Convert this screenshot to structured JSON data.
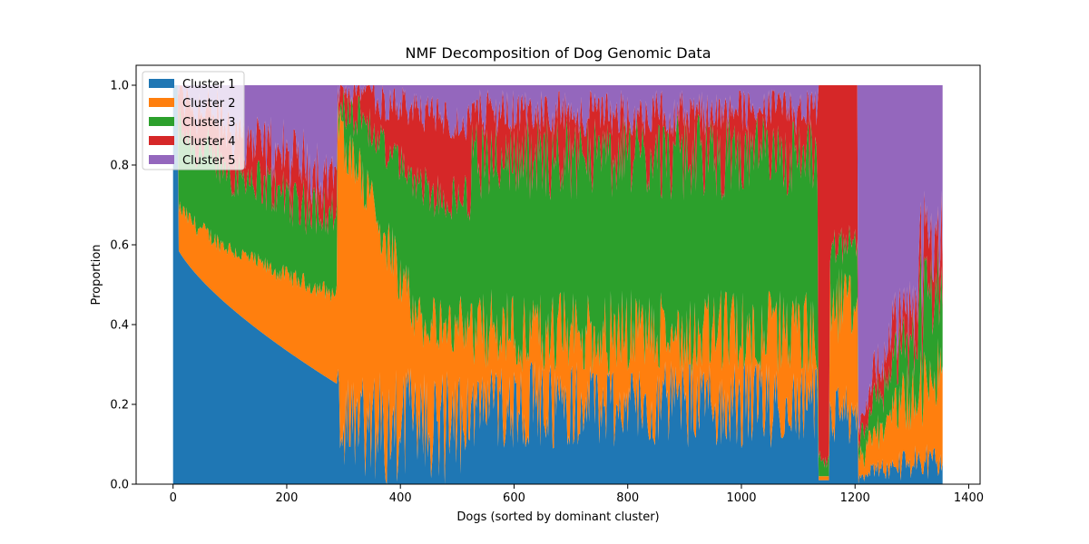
{
  "chart_data": {
    "type": "area",
    "stacked": true,
    "title": "NMF Decomposition of Dog Genomic Data",
    "xlabel": "Dogs (sorted by dominant cluster)",
    "ylabel": "Proportion",
    "xlim": [
      -65,
      1420
    ],
    "ylim": [
      0,
      1.05
    ],
    "xticks": [
      "0",
      "200",
      "400",
      "600",
      "800",
      "1000",
      "1200",
      "1400"
    ],
    "yticks": [
      "0.0",
      "0.2",
      "0.4",
      "0.6",
      "0.8",
      "1.0"
    ],
    "legend_position": "top-left",
    "grid": false,
    "n_samples": 1355,
    "series": [
      {
        "name": "Cluster 1",
        "color": "#1f77b4"
      },
      {
        "name": "Cluster 2",
        "color": "#ff7f0e"
      },
      {
        "name": "Cluster 3",
        "color": "#2ca02c"
      },
      {
        "name": "Cluster 4",
        "color": "#d62728"
      },
      {
        "name": "Cluster 5",
        "color": "#9467bd"
      }
    ],
    "segments": [
      {
        "range": [
          0,
          290
        ],
        "dominant": "Cluster 1",
        "cumulative_boundaries_start": [
          1.0,
          1.0,
          1.0,
          1.0,
          1.0
        ],
        "cumulative_boundaries_end": [
          0.25,
          0.45,
          0.72,
          0.82,
          1.0
        ]
      },
      {
        "range": [
          290,
          525
        ],
        "dominant": "Cluster 2",
        "mean_cumulative_boundaries": [
          0.15,
          0.45,
          0.72,
          0.88,
          1.0
        ]
      },
      {
        "range": [
          525,
          1135
        ],
        "dominant": "Cluster 3",
        "mean_cumulative_boundaries": [
          0.2,
          0.38,
          0.82,
          0.93,
          1.0
        ]
      },
      {
        "range": [
          1135,
          1205
        ],
        "dominant": "Cluster 4",
        "mean_cumulative_boundaries": [
          0.05,
          0.25,
          0.4,
          1.0,
          1.0
        ]
      },
      {
        "range": [
          1205,
          1355
        ],
        "dominant": "Cluster 5",
        "cumulative_boundaries_start": [
          0.05,
          0.12,
          0.17,
          0.22,
          1.0
        ],
        "cumulative_boundaries_end": [
          0.04,
          0.32,
          0.58,
          0.72,
          1.0
        ]
      }
    ]
  }
}
